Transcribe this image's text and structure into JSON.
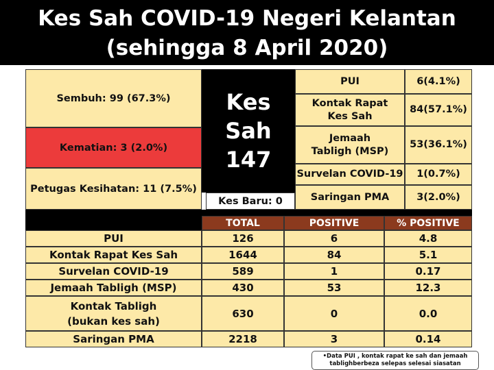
{
  "title": {
    "line1": "Kes Sah COVID-19 Negeri Kelantan",
    "line2": "(sehingga 8 April 2020)"
  },
  "left_panel": {
    "sembuh": "Sembuh:  99 (67.3%)",
    "kematian": "Kematian:    3 (2.0%)",
    "petugas": "Petugas Kesihatan:  11 (7.5%)"
  },
  "center_panel": {
    "label": "Kes Sah",
    "total": "147",
    "kes_baru": "Kes Baru: 0"
  },
  "right_panel": [
    {
      "label": "PUI",
      "value": "6(4.1%)"
    },
    {
      "label": "Kontak Rapat Kes Sah",
      "value": "84(57.1%)"
    },
    {
      "label": "Jemaah Tabligh (MSP)",
      "value": "53(36.1%)"
    },
    {
      "label": "Survelan COVID-19",
      "value": "1(0.7%)"
    },
    {
      "label": "Saringan PMA",
      "value": "3(2.0%)"
    }
  ],
  "table": {
    "headers": [
      "TOTAL",
      "POSITIVE",
      "% POSITIVE"
    ],
    "rows": [
      {
        "label": "PUI",
        "total": "126",
        "positive": "6",
        "pct": "4.8"
      },
      {
        "label": "Kontak Rapat Kes Sah",
        "total": "1644",
        "positive": "84",
        "pct": "5.1"
      },
      {
        "label": "Survelan COVID-19",
        "total": "589",
        "positive": "1",
        "pct": "0.17"
      },
      {
        "label": "Jemaah Tabligh (MSP)",
        "total": "430",
        "positive": "53",
        "pct": "12.3"
      },
      {
        "label": "Kontak Tabligh (bukan kes sah)",
        "label_line1": "Kontak Tabligh",
        "label_line2": "(bukan kes sah)",
        "total": "630",
        "positive": "0",
        "pct": "0.0"
      },
      {
        "label": "Saringan PMA",
        "total": "2218",
        "positive": "3",
        "pct": "0.14"
      }
    ]
  },
  "footnote": {
    "line1": "•Data PUI , kontak rapat ke sah dan jemaah",
    "line2": "tablighberbeza selepas selesai siasatan"
  },
  "colors": {
    "cream": "#fde9a8",
    "red": "#ec3b3b",
    "header_brown": "#8b3a1e",
    "black": "#000000"
  }
}
